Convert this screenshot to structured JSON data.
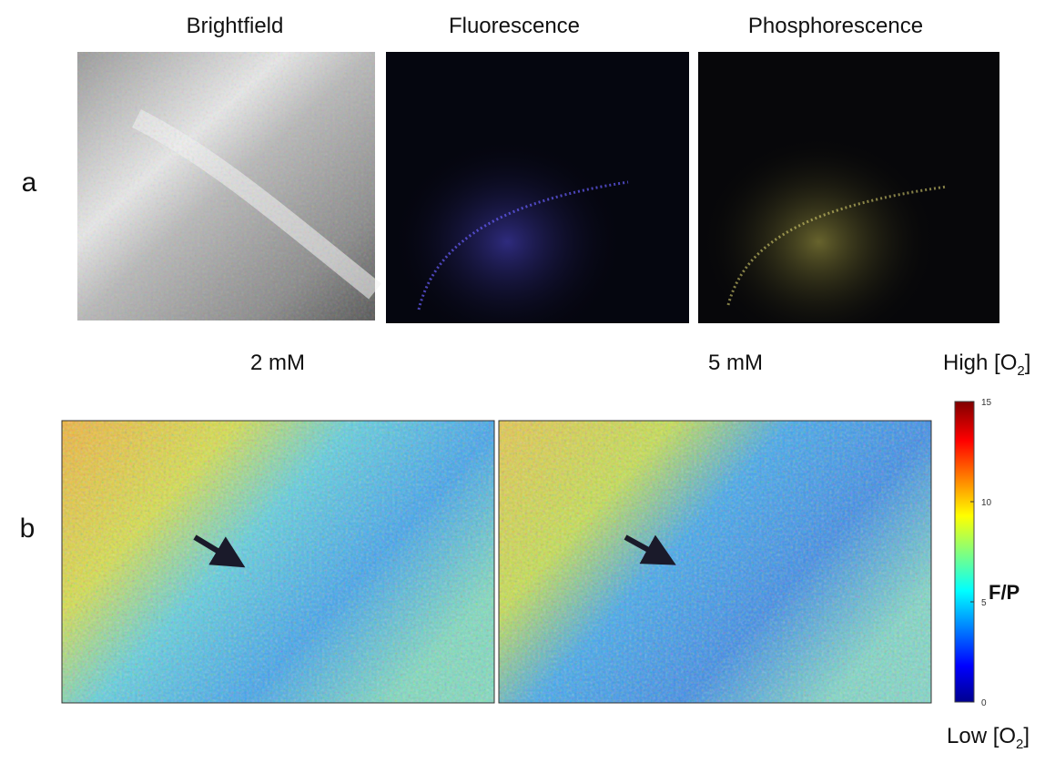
{
  "panel_a": {
    "label": "a",
    "titles": [
      "Brightfield",
      "Fluorescence",
      "Phosphorescence"
    ]
  },
  "panel_b": {
    "label": "b",
    "titles": [
      "2 mM",
      "5 mM"
    ],
    "high_label": {
      "before": "High [O",
      "sub": "2",
      "after": "]"
    },
    "low_label": {
      "before": "Low [O",
      "sub": "2",
      "after": "]"
    },
    "colorbar": {
      "label": "F/P",
      "lim": [
        0,
        15
      ],
      "ticks": [
        0,
        5,
        10,
        15
      ]
    }
  }
}
